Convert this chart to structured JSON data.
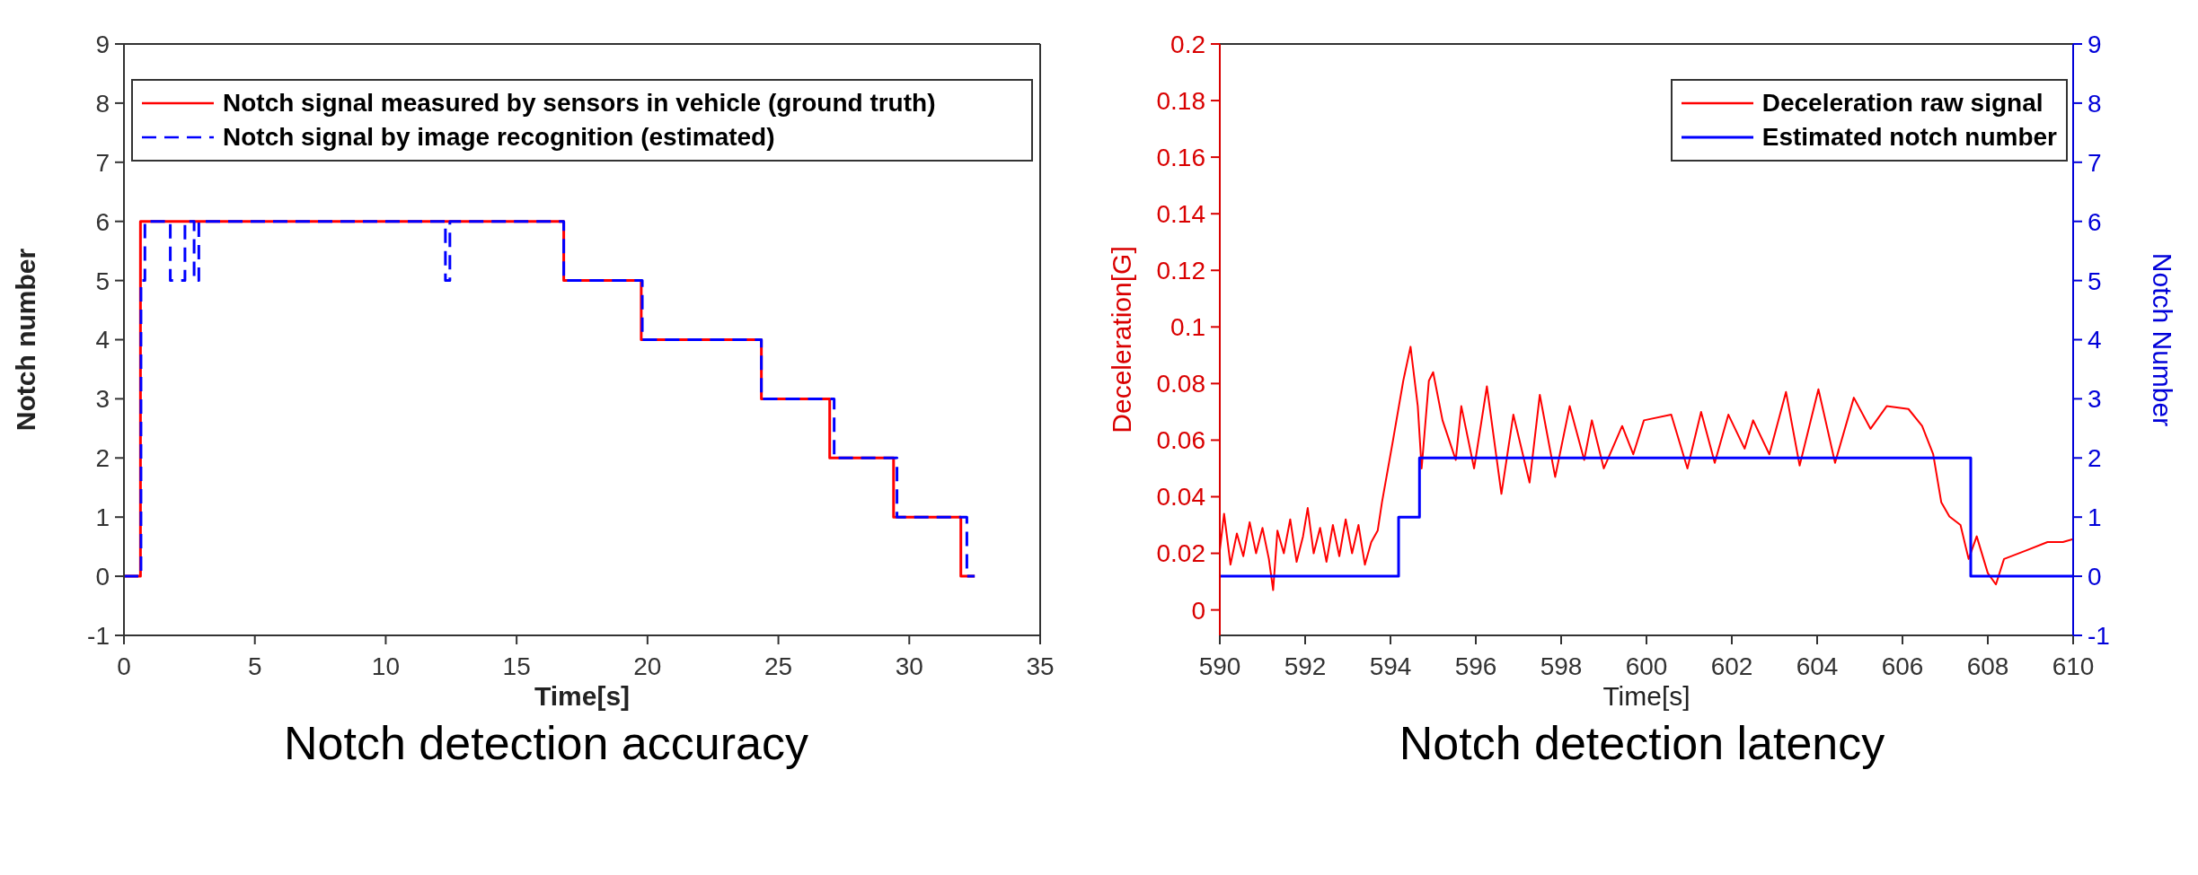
{
  "chart_data": [
    {
      "type": "step",
      "title": "Notch detection accuracy",
      "xlabel": "Time[s]",
      "ylabel": "Notch number",
      "xlim": [
        0,
        35
      ],
      "xticks": [
        0,
        5,
        10,
        15,
        20,
        25,
        30,
        35
      ],
      "ylim": [
        -1,
        9
      ],
      "yticks": [
        -1,
        0,
        1,
        2,
        3,
        4,
        5,
        6,
        7,
        8,
        9
      ],
      "legend": "top",
      "marker": "none",
      "series": [
        {
          "name": "Notch signal measured by sensors in vehicle (ground truth)",
          "color": "#ff0000",
          "line_style": "solid",
          "x": [
            0,
            0.63,
            16.8,
            19.76,
            24.35,
            26.96,
            29.4,
            31.97,
            32.5
          ],
          "values": [
            0,
            6,
            5,
            4,
            3,
            2,
            1,
            0,
            0
          ]
        },
        {
          "name": "Notch signal by image recognition (estimated)",
          "color": "#0000ff",
          "line_style": "dashed",
          "x": [
            0,
            0.65,
            0.8,
            1.77,
            2.33,
            2.68,
            2.86,
            12.28,
            12.45,
            16.8,
            19.8,
            24.35,
            27.13,
            29.53,
            32.2,
            32.5
          ],
          "values": [
            0,
            5,
            6,
            5,
            6,
            5,
            6,
            5,
            6,
            5,
            4,
            3,
            2,
            1,
            0,
            0
          ]
        }
      ]
    },
    {
      "type": "line",
      "title": "Notch detection latency",
      "xlabel": "Time[s]",
      "ylabel": "Deceleration[G]",
      "y2label": "Notch Number",
      "xlim": [
        590,
        610
      ],
      "xticks": [
        590,
        592,
        594,
        596,
        598,
        600,
        602,
        604,
        606,
        608,
        610
      ],
      "ylim": [
        -0.009,
        0.2
      ],
      "yticks": [
        0,
        0.02,
        0.04,
        0.06,
        0.08,
        0.1,
        0.12,
        0.14,
        0.16,
        0.18,
        0.2
      ],
      "y2lim": [
        -1,
        9
      ],
      "y2ticks": [
        -1,
        0,
        1,
        2,
        3,
        4,
        5,
        6,
        7,
        8,
        9
      ],
      "legend": "top right",
      "marker": "none",
      "series": [
        {
          "name": "Deceleration raw signal",
          "color": "#ff0000",
          "x": [
            590,
            590.1,
            590.25,
            590.4,
            590.55,
            590.7,
            590.85,
            591,
            591.15,
            591.25,
            591.35,
            591.5,
            591.65,
            591.8,
            591.95,
            592.06,
            592.2,
            592.35,
            592.5,
            592.65,
            592.8,
            592.95,
            593.1,
            593.25,
            593.4,
            593.55,
            593.7,
            593.8,
            594.06,
            594.3,
            594.47,
            594.64,
            594.73,
            594.9,
            595,
            595.22,
            595.53,
            595.66,
            595.96,
            596.26,
            596.6,
            596.88,
            597.26,
            597.5,
            597.86,
            598.2,
            598.54,
            598.72,
            599,
            599.43,
            599.69,
            599.94,
            600.58,
            600.96,
            601.28,
            601.6,
            601.92,
            602.3,
            602.5,
            602.88,
            603.27,
            603.59,
            604.03,
            604.42,
            604.86,
            605.25,
            605.63,
            606.14,
            606.46,
            606.72,
            606.91,
            607.1,
            607.36,
            607.55,
            607.74,
            608,
            608.19,
            608.38,
            608.9,
            609.4,
            609.76,
            610
          ],
          "values": [
            0.021,
            0.034,
            0.016,
            0.027,
            0.019,
            0.031,
            0.02,
            0.029,
            0.018,
            0.007,
            0.028,
            0.02,
            0.032,
            0.017,
            0.026,
            0.036,
            0.02,
            0.029,
            0.017,
            0.03,
            0.019,
            0.032,
            0.02,
            0.03,
            0.016,
            0.024,
            0.028,
            0.038,
            0.06,
            0.081,
            0.093,
            0.072,
            0.05,
            0.081,
            0.084,
            0.067,
            0.053,
            0.072,
            0.05,
            0.079,
            0.041,
            0.069,
            0.045,
            0.076,
            0.047,
            0.072,
            0.053,
            0.067,
            0.05,
            0.065,
            0.055,
            0.067,
            0.069,
            0.05,
            0.07,
            0.052,
            0.069,
            0.057,
            0.067,
            0.055,
            0.077,
            0.051,
            0.078,
            0.052,
            0.075,
            0.064,
            0.072,
            0.071,
            0.065,
            0.055,
            0.038,
            0.033,
            0.03,
            0.018,
            0.026,
            0.013,
            0.009,
            0.018,
            0.021,
            0.024,
            0.024,
            0.025
          ]
        },
        {
          "name": "Estimated notch number",
          "color": "#0000ff",
          "type": "step",
          "axis": "y2",
          "x": [
            590,
            594.19,
            594.68,
            607.6,
            610
          ],
          "values": [
            0,
            1,
            2,
            0,
            0
          ]
        }
      ]
    }
  ]
}
